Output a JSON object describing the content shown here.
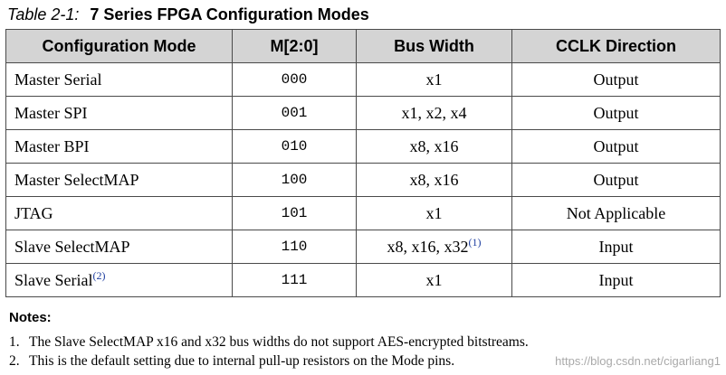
{
  "caption": {
    "label": "Table 2-1:",
    "title": "7 Series FPGA Configuration Modes"
  },
  "table": {
    "headers": [
      "Configuration Mode",
      "M[2:0]",
      "Bus Width",
      "CCLK Direction"
    ],
    "rows": [
      {
        "mode": "Master Serial",
        "mode_note": "",
        "m": "000",
        "bus": "x1",
        "bus_note": "",
        "cclk": "Output"
      },
      {
        "mode": "Master SPI",
        "mode_note": "",
        "m": "001",
        "bus": "x1, x2, x4",
        "bus_note": "",
        "cclk": "Output"
      },
      {
        "mode": "Master BPI",
        "mode_note": "",
        "m": "010",
        "bus": "x8, x16",
        "bus_note": "",
        "cclk": "Output"
      },
      {
        "mode": "Master SelectMAP",
        "mode_note": "",
        "m": "100",
        "bus": "x8, x16",
        "bus_note": "",
        "cclk": "Output"
      },
      {
        "mode": "JTAG",
        "mode_note": "",
        "m": "101",
        "bus": "x1",
        "bus_note": "",
        "cclk": "Not Applicable"
      },
      {
        "mode": "Slave SelectMAP",
        "mode_note": "",
        "m": "110",
        "bus": "x8, x16, x32",
        "bus_note": "(1)",
        "cclk": "Input"
      },
      {
        "mode": "Slave Serial",
        "mode_note": "(2)",
        "m": "111",
        "bus": "x1",
        "bus_note": "",
        "cclk": "Input"
      }
    ]
  },
  "notes": {
    "heading": "Notes:",
    "items": [
      {
        "num": "1.",
        "text": "The Slave SelectMAP x16 and x32 bus widths do not support AES-encrypted bitstreams."
      },
      {
        "num": "2.",
        "text": "This is the default setting due to internal pull-up resistors on the Mode pins."
      }
    ]
  },
  "watermark": "https://blog.csdn.net/cigarliang1"
}
